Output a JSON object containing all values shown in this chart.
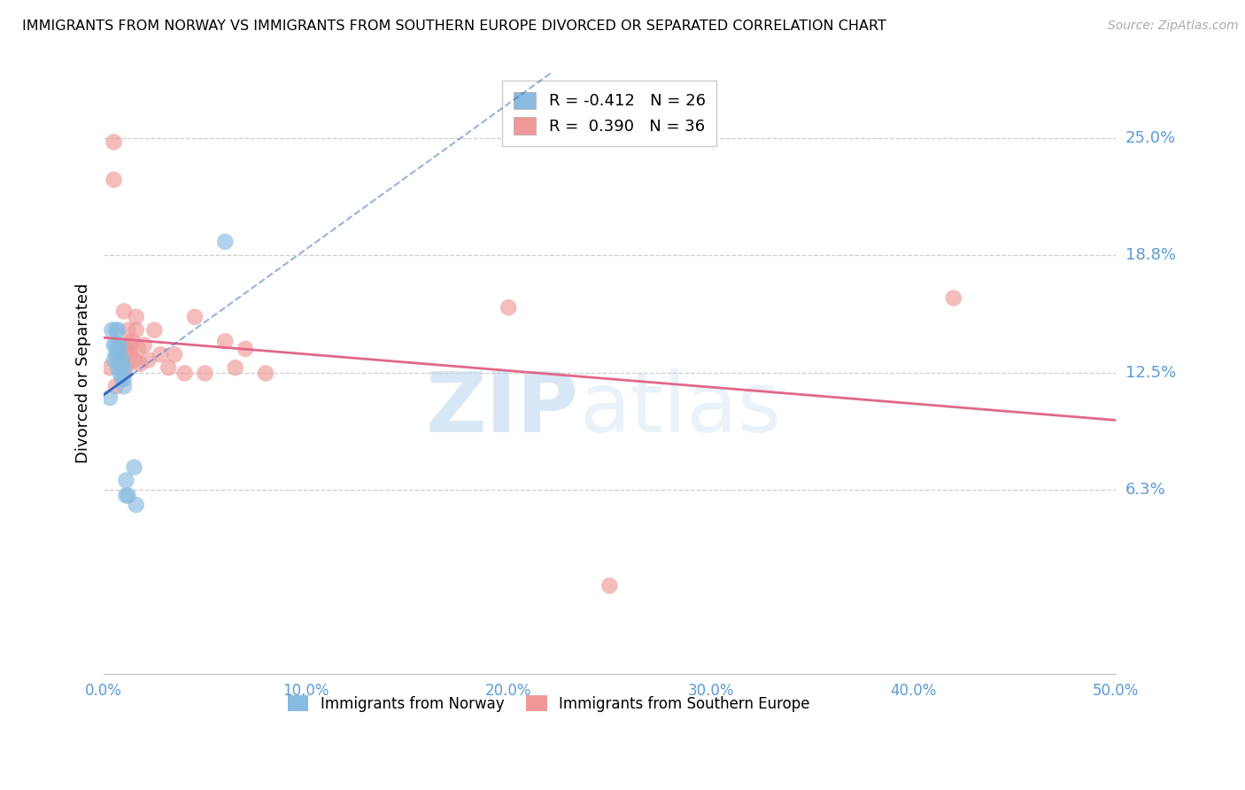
{
  "title": "IMMIGRANTS FROM NORWAY VS IMMIGRANTS FROM SOUTHERN EUROPE DIVORCED OR SEPARATED CORRELATION CHART",
  "source": "Source: ZipAtlas.com",
  "ylabel": "Divorced or Separated",
  "ytick_values": [
    0.063,
    0.125,
    0.188,
    0.25
  ],
  "ytick_labels": [
    "6.3%",
    "12.5%",
    "18.8%",
    "25.0%"
  ],
  "xlim": [
    0.0,
    0.5
  ],
  "ylim": [
    -0.035,
    0.285
  ],
  "watermark_zip": "ZIP",
  "watermark_atlas": "atlas",
  "legend_r1": "R = -0.412",
  "legend_n1": "N = 26",
  "legend_r2": "R =  0.390",
  "legend_n2": "N = 36",
  "color_norway": "#88BBDF",
  "color_s_europe": "#F09898",
  "color_norway_line": "#3366BB",
  "color_s_europe_line": "#E06888",
  "norway_x": [
    0.003,
    0.004,
    0.005,
    0.005,
    0.006,
    0.006,
    0.006,
    0.007,
    0.007,
    0.007,
    0.008,
    0.008,
    0.008,
    0.008,
    0.009,
    0.009,
    0.009,
    0.01,
    0.01,
    0.01,
    0.011,
    0.011,
    0.012,
    0.015,
    0.016,
    0.06
  ],
  "norway_y": [
    0.112,
    0.148,
    0.132,
    0.14,
    0.135,
    0.14,
    0.148,
    0.128,
    0.138,
    0.148,
    0.125,
    0.13,
    0.135,
    0.14,
    0.122,
    0.128,
    0.132,
    0.118,
    0.122,
    0.128,
    0.06,
    0.068,
    0.06,
    0.075,
    0.055,
    0.195
  ],
  "s_europe_x": [
    0.003,
    0.005,
    0.005,
    0.006,
    0.007,
    0.008,
    0.009,
    0.01,
    0.01,
    0.011,
    0.011,
    0.012,
    0.013,
    0.013,
    0.014,
    0.015,
    0.016,
    0.016,
    0.017,
    0.018,
    0.02,
    0.022,
    0.025,
    0.028,
    0.032,
    0.035,
    0.04,
    0.045,
    0.05,
    0.06,
    0.065,
    0.07,
    0.08,
    0.2,
    0.25,
    0.42
  ],
  "s_europe_y": [
    0.128,
    0.228,
    0.248,
    0.118,
    0.135,
    0.13,
    0.128,
    0.14,
    0.158,
    0.128,
    0.135,
    0.148,
    0.135,
    0.14,
    0.142,
    0.132,
    0.148,
    0.155,
    0.138,
    0.13,
    0.14,
    0.132,
    0.148,
    0.135,
    0.128,
    0.135,
    0.125,
    0.155,
    0.125,
    0.142,
    0.128,
    0.138,
    0.125,
    0.16,
    0.012,
    0.165
  ]
}
